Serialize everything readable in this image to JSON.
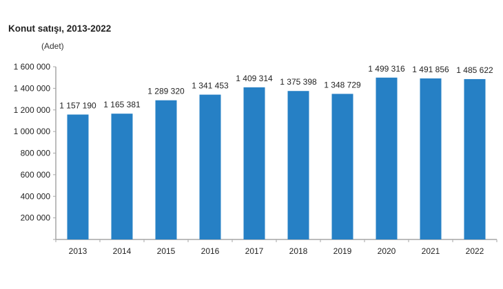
{
  "chart_data": {
    "type": "bar",
    "title": "Konut satışı, 2013-2022",
    "ylabel": "(Adet)",
    "xlabel": "",
    "categories": [
      "2013",
      "2014",
      "2015",
      "2016",
      "2017",
      "2018",
      "2019",
      "2020",
      "2021",
      "2022"
    ],
    "values": [
      1157190,
      1165381,
      1289320,
      1341453,
      1409314,
      1375398,
      1348729,
      1499316,
      1491856,
      1485622
    ],
    "value_labels": [
      "1 157 190",
      "1 165 381",
      "1 289 320",
      "1 341 453",
      "1 409 314",
      "1 375 398",
      "1 348 729",
      "1 499 316",
      "1 491 856",
      "1 485 622"
    ],
    "ylim": [
      0,
      1600000
    ],
    "yticks": [
      0,
      200000,
      400000,
      600000,
      800000,
      1000000,
      1200000,
      1400000,
      1600000
    ],
    "ytick_labels": [
      "",
      "200 000",
      "400 000",
      "600 000",
      "800 000",
      "1 000 000",
      "1 200 000",
      "1 400 000",
      "1 600 000"
    ],
    "grid": false,
    "legend": "none",
    "bar_color": "#2680c5",
    "axis_color": "#a6a6a6"
  }
}
